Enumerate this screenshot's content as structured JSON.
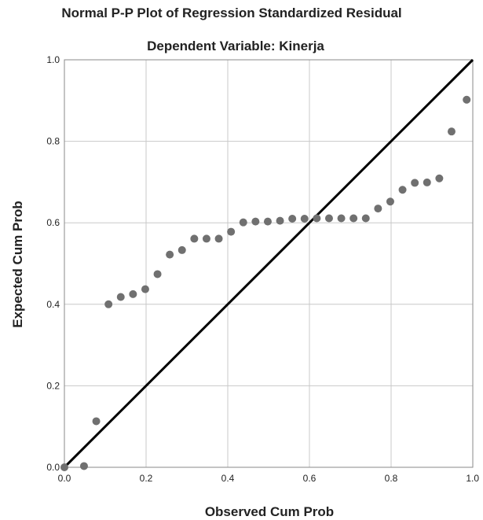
{
  "chart_data": {
    "type": "scatter",
    "title": "Normal P-P Plot of Regression Standardized Residual",
    "subtitle": "Dependent Variable: Kinerja",
    "xlabel": "Observed Cum Prob",
    "ylabel": "Expected Cum Prob",
    "xlim": [
      0.0,
      1.0
    ],
    "ylim": [
      0.0,
      1.0
    ],
    "xticks": [
      "0.0",
      "0.2",
      "0.4",
      "0.6",
      "0.8",
      "1.0"
    ],
    "yticks": [
      "0.0",
      "0.2",
      "0.4",
      "0.6",
      "0.8",
      "1.0"
    ],
    "grid": true,
    "reference_line": {
      "x": [
        0.0,
        1.0
      ],
      "y": [
        0.0,
        1.0
      ]
    },
    "colors": {
      "points": "#707070",
      "reference_line": "#000000",
      "grid": "#c8c8c8",
      "frame": "#8a8a8a"
    },
    "points": [
      {
        "x": 0.0,
        "y": 0.0
      },
      {
        "x": 0.048,
        "y": 0.003
      },
      {
        "x": 0.078,
        "y": 0.113
      },
      {
        "x": 0.108,
        "y": 0.4
      },
      {
        "x": 0.138,
        "y": 0.418
      },
      {
        "x": 0.168,
        "y": 0.425
      },
      {
        "x": 0.198,
        "y": 0.437
      },
      {
        "x": 0.228,
        "y": 0.474
      },
      {
        "x": 0.258,
        "y": 0.522
      },
      {
        "x": 0.288,
        "y": 0.533
      },
      {
        "x": 0.318,
        "y": 0.561
      },
      {
        "x": 0.348,
        "y": 0.561
      },
      {
        "x": 0.378,
        "y": 0.561
      },
      {
        "x": 0.408,
        "y": 0.578
      },
      {
        "x": 0.438,
        "y": 0.601
      },
      {
        "x": 0.468,
        "y": 0.603
      },
      {
        "x": 0.498,
        "y": 0.603
      },
      {
        "x": 0.528,
        "y": 0.605
      },
      {
        "x": 0.558,
        "y": 0.61
      },
      {
        "x": 0.588,
        "y": 0.61
      },
      {
        "x": 0.618,
        "y": 0.611
      },
      {
        "x": 0.648,
        "y": 0.611
      },
      {
        "x": 0.678,
        "y": 0.611
      },
      {
        "x": 0.708,
        "y": 0.611
      },
      {
        "x": 0.738,
        "y": 0.611
      },
      {
        "x": 0.768,
        "y": 0.635
      },
      {
        "x": 0.798,
        "y": 0.652
      },
      {
        "x": 0.828,
        "y": 0.681
      },
      {
        "x": 0.858,
        "y": 0.698
      },
      {
        "x": 0.888,
        "y": 0.699
      },
      {
        "x": 0.918,
        "y": 0.709
      },
      {
        "x": 0.948,
        "y": 0.824
      },
      {
        "x": 0.985,
        "y": 0.902
      }
    ]
  }
}
